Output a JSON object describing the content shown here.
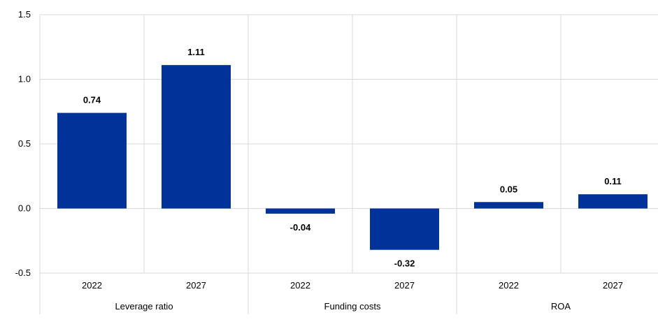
{
  "chart_data": {
    "type": "bar",
    "groups": [
      "Leverage ratio",
      "Funding costs",
      "ROA"
    ],
    "categories": [
      "2022",
      "2027",
      "2022",
      "2027",
      "2022",
      "2027"
    ],
    "values": [
      0.74,
      1.11,
      -0.04,
      -0.32,
      0.05,
      0.11
    ],
    "value_labels": [
      "0.74",
      "1.11",
      "-0.04",
      "-0.32",
      "0.05",
      "0.11"
    ],
    "yticks": [
      "1.5",
      "1.0",
      "0.5",
      "0.0",
      "-0.5"
    ],
    "ytick_values": [
      1.5,
      1.0,
      0.5,
      0.0,
      -0.5
    ],
    "ylim": [
      -0.5,
      1.5
    ],
    "grid": true,
    "legend": "none",
    "bar_color": "#003299",
    "grid_color": "#d9d9d9"
  }
}
